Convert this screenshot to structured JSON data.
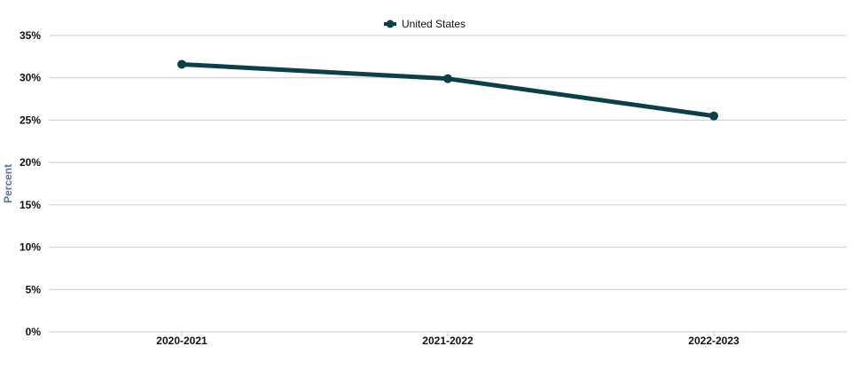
{
  "chart_data": {
    "type": "line",
    "title": "",
    "xlabel": "",
    "ylabel": "Percent",
    "categories": [
      "2020-2021",
      "2021-2022",
      "2022-2023"
    ],
    "series": [
      {
        "name": "United States",
        "values": [
          31.6,
          29.9,
          25.5
        ],
        "color": "#0e3f47"
      }
    ],
    "ylim": [
      0,
      35
    ],
    "yticks": [
      0,
      5,
      10,
      15,
      20,
      25,
      30,
      35
    ],
    "ytick_labels": [
      "0%",
      "5%",
      "10%",
      "15%",
      "20%",
      "25%",
      "30%",
      "35%"
    ],
    "grid": true,
    "legend": "top-center"
  }
}
